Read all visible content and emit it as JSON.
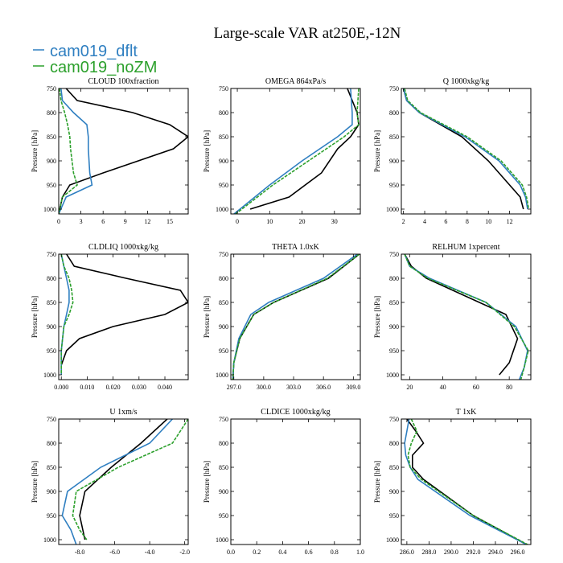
{
  "figure": {
    "title": "Large-scale VAR at250E,-12N",
    "legend": [
      {
        "name": "cam019_dflt",
        "color": "#2f7fc1"
      },
      {
        "name": "cam019_noZM",
        "color": "#2ca02c"
      }
    ],
    "obs_color": "#000000"
  },
  "chart_data": [
    {
      "type": "line",
      "title": "CLOUD 100xfraction",
      "ylabel": "Pressure [hPa]",
      "xlim": [
        0,
        17.5
      ],
      "ylim": [
        1010,
        750
      ],
      "xticks": [
        0,
        3,
        6,
        9,
        12,
        15
      ],
      "xtick_labels": [
        "0",
        "3",
        "6",
        "9",
        "12",
        "15"
      ],
      "yticks": [
        750,
        800,
        850,
        900,
        950,
        1000
      ],
      "series": [
        {
          "color": "#000000",
          "dashed": false,
          "x": [
            1.0,
            2.5,
            10.0,
            15.0,
            17.5,
            15.5,
            6.0,
            1.5,
            0.5,
            0.0
          ],
          "y": [
            750,
            775,
            800,
            825,
            850,
            875,
            925,
            950,
            975,
            1010
          ]
        },
        {
          "color": "#2f7fc1",
          "dashed": false,
          "x": [
            0.3,
            0.5,
            2.0,
            3.8,
            4.0,
            4.0,
            4.2,
            4.5,
            1.0,
            0.0
          ],
          "y": [
            750,
            775,
            800,
            825,
            850,
            875,
            925,
            950,
            975,
            1010
          ]
        },
        {
          "color": "#2ca02c",
          "dashed": true,
          "x": [
            0.1,
            0.3,
            0.8,
            1.2,
            1.5,
            1.6,
            2.0,
            2.5,
            0.5,
            0.0
          ],
          "y": [
            750,
            775,
            800,
            825,
            850,
            875,
            925,
            950,
            975,
            1010
          ]
        }
      ]
    },
    {
      "type": "line",
      "title": "OMEGA 864xPa/s",
      "ylabel": "Pressure [hPa]",
      "xlim": [
        -2,
        38
      ],
      "ylim": [
        1010,
        750
      ],
      "xticks": [
        0,
        10,
        20,
        30
      ],
      "xtick_labels": [
        "0",
        "10",
        "20",
        "30"
      ],
      "yticks": [
        750,
        800,
        850,
        900,
        950,
        1000
      ],
      "series": [
        {
          "color": "#000000",
          "dashed": false,
          "x": [
            34.0,
            37.0,
            37.5,
            35.0,
            31.0,
            26.0,
            16.0,
            4.0
          ],
          "y": [
            750,
            800,
            825,
            850,
            875,
            925,
            975,
            1000
          ]
        },
        {
          "color": "#2f7fc1",
          "dashed": false,
          "x": [
            35.0,
            35.5,
            35.5,
            31.0,
            20.0,
            10.0,
            -1.0
          ],
          "y": [
            750,
            800,
            825,
            850,
            900,
            950,
            1010
          ]
        },
        {
          "color": "#2ca02c",
          "dashed": true,
          "x": [
            37.5,
            37.0,
            37.5,
            33.0,
            22.0,
            11.0,
            -0.5
          ],
          "y": [
            750,
            800,
            825,
            850,
            900,
            950,
            1010
          ]
        }
      ]
    },
    {
      "type": "line",
      "title": "Q 1000xkg/kg",
      "ylabel": "Pressure [hPa]",
      "xlim": [
        1.8,
        14.0
      ],
      "ylim": [
        1010,
        750
      ],
      "xticks": [
        2,
        4,
        6,
        8,
        10,
        12
      ],
      "xtick_labels": [
        "2",
        "4",
        "6",
        "8",
        "10",
        "12"
      ],
      "yticks": [
        750,
        800,
        850,
        900,
        950,
        1000
      ],
      "series": [
        {
          "color": "#000000",
          "dashed": false,
          "x": [
            2.0,
            2.3,
            3.5,
            7.5,
            10.0,
            12.0,
            13.0,
            13.3
          ],
          "y": [
            750,
            775,
            800,
            850,
            900,
            950,
            975,
            1000
          ]
        },
        {
          "color": "#2f7fc1",
          "dashed": false,
          "x": [
            2.0,
            2.3,
            3.5,
            7.8,
            11.0,
            13.0,
            13.5,
            13.7
          ],
          "y": [
            750,
            775,
            800,
            850,
            900,
            950,
            975,
            1000
          ]
        },
        {
          "color": "#2ca02c",
          "dashed": true,
          "x": [
            2.1,
            2.4,
            3.6,
            8.0,
            11.2,
            13.2,
            13.6,
            13.8
          ],
          "y": [
            750,
            775,
            800,
            850,
            900,
            950,
            975,
            1000
          ]
        }
      ]
    },
    {
      "type": "line",
      "title": "CLDLIQ 1000xkg/kg",
      "ylabel": "Pressure [hPa]",
      "xlim": [
        -0.001,
        0.049
      ],
      "ylim": [
        1010,
        750
      ],
      "xticks": [
        0,
        0.01,
        0.02,
        0.03,
        0.04
      ],
      "xtick_labels": [
        "0.000",
        "0.010",
        "0.020",
        "0.030",
        "0.040"
      ],
      "yticks": [
        750,
        800,
        850,
        900,
        950,
        1000
      ],
      "series": [
        {
          "color": "#000000",
          "dashed": false,
          "x": [
            0.002,
            0.005,
            0.025,
            0.046,
            0.049,
            0.04,
            0.02,
            0.007,
            0.002,
            0.0
          ],
          "y": [
            750,
            775,
            800,
            825,
            850,
            875,
            900,
            925,
            950,
            980
          ]
        },
        {
          "color": "#2f7fc1",
          "dashed": false,
          "x": [
            0.0,
            0.001,
            0.002,
            0.003,
            0.003,
            0.002,
            0.001,
            0.0,
            0.0
          ],
          "y": [
            750,
            775,
            800,
            825,
            850,
            875,
            900,
            950,
            1000
          ]
        },
        {
          "color": "#2ca02c",
          "dashed": true,
          "x": [
            0.0,
            0.001,
            0.003,
            0.004,
            0.0045,
            0.003,
            0.001,
            0.0,
            0.0
          ],
          "y": [
            750,
            775,
            800,
            825,
            850,
            875,
            900,
            950,
            1000
          ]
        }
      ]
    },
    {
      "type": "line",
      "title": "THETA 1.0xK",
      "ylabel": "Pressure [hPa]",
      "xlim": [
        296.7,
        309.7
      ],
      "ylim": [
        1010,
        750
      ],
      "xticks": [
        297,
        300,
        303,
        306,
        309
      ],
      "xtick_labels": [
        "297.0",
        "300.0",
        "303.0",
        "306.0",
        "309.0"
      ],
      "yticks": [
        750,
        800,
        850,
        900,
        950,
        1000
      ],
      "series": [
        {
          "color": "#000000",
          "dashed": false,
          "x": [
            309.6,
            306.5,
            301.0,
            299.0,
            297.6,
            297.0,
            296.9
          ],
          "y": [
            750,
            800,
            850,
            875,
            925,
            975,
            1010
          ]
        },
        {
          "color": "#2f7fc1",
          "dashed": false,
          "x": [
            309.4,
            306.0,
            300.5,
            298.7,
            297.5,
            297.0,
            296.9
          ],
          "y": [
            750,
            800,
            850,
            875,
            925,
            975,
            1010
          ]
        },
        {
          "color": "#2ca02c",
          "dashed": true,
          "x": [
            309.6,
            306.4,
            301.0,
            299.0,
            297.6,
            297.0,
            296.9
          ],
          "y": [
            750,
            800,
            850,
            875,
            925,
            975,
            1010
          ]
        }
      ]
    },
    {
      "type": "line",
      "title": "RELHUM 1xpercent",
      "ylabel": "Pressure [hPa]",
      "xlim": [
        15,
        93
      ],
      "ylim": [
        1010,
        750
      ],
      "xticks": [
        20,
        40,
        60,
        80
      ],
      "xtick_labels": [
        "20",
        "40",
        "60",
        "80"
      ],
      "yticks": [
        750,
        800,
        850,
        900,
        950,
        1000
      ],
      "series": [
        {
          "color": "#000000",
          "dashed": false,
          "x": [
            17.0,
            21.0,
            30.0,
            62.0,
            78.0,
            85.0,
            80.0,
            74.0
          ],
          "y": [
            750,
            775,
            800,
            850,
            875,
            925,
            975,
            1000
          ]
        },
        {
          "color": "#2f7fc1",
          "dashed": false,
          "x": [
            17.0,
            20.0,
            32.0,
            66.0,
            84.0,
            91.0,
            89.0,
            86.0
          ],
          "y": [
            750,
            775,
            800,
            850,
            900,
            950,
            985,
            1010
          ]
        },
        {
          "color": "#2ca02c",
          "dashed": true,
          "x": [
            17.0,
            20.0,
            31.0,
            66.0,
            83.0,
            91.5,
            89.0,
            87.0
          ],
          "y": [
            750,
            775,
            800,
            850,
            900,
            950,
            985,
            1010
          ]
        }
      ]
    },
    {
      "type": "line",
      "title": "U 1xm/s",
      "ylabel": "Pressure [hPa]",
      "xlim": [
        -9.2,
        -1.8
      ],
      "ylim": [
        1010,
        750
      ],
      "xticks": [
        -8,
        -6,
        -4,
        -2
      ],
      "xtick_labels": [
        "-8.0",
        "-6.0",
        "-4.0",
        "-2.0"
      ],
      "yticks": [
        750,
        800,
        850,
        900,
        950,
        1000
      ],
      "series": [
        {
          "color": "#000000",
          "dashed": false,
          "x": [
            -3.0,
            -4.5,
            -6.2,
            -7.7,
            -8.0,
            -7.7
          ],
          "y": [
            750,
            800,
            850,
            900,
            950,
            1000
          ]
        },
        {
          "color": "#2f7fc1",
          "dashed": false,
          "x": [
            -2.7,
            -4.0,
            -6.8,
            -8.7,
            -9.0,
            -8.5,
            -8.2
          ],
          "y": [
            750,
            800,
            850,
            900,
            950,
            980,
            1010
          ]
        },
        {
          "color": "#2ca02c",
          "dashed": true,
          "x": [
            -1.8,
            -2.7,
            -5.8,
            -8.2,
            -8.4,
            -8.0,
            -7.6
          ],
          "y": [
            750,
            800,
            850,
            900,
            950,
            980,
            1000
          ]
        }
      ]
    },
    {
      "type": "line",
      "title": "CLDICE 1000xkg/kg",
      "ylabel": "Pressure [hPa]",
      "xlim": [
        0,
        1
      ],
      "ylim": [
        1010,
        750
      ],
      "xticks": [
        0,
        0.2,
        0.4,
        0.6,
        0.8,
        1.0
      ],
      "xtick_labels": [
        "0.0",
        "0.2",
        "0.4",
        "0.6",
        "0.8",
        "1.0"
      ],
      "yticks": [
        750,
        800,
        850,
        900,
        950,
        1000
      ],
      "series": []
    },
    {
      "type": "line",
      "title": "T 1xK",
      "ylabel": "Pressure [hPa]",
      "xlim": [
        285.5,
        297.2
      ],
      "ylim": [
        1010,
        750
      ],
      "xticks": [
        286,
        288,
        290,
        292,
        294,
        296
      ],
      "xtick_labels": [
        "286.0",
        "288.0",
        "290.0",
        "292.0",
        "294.0",
        "296.0"
      ],
      "yticks": [
        750,
        800,
        850,
        900,
        950,
        1000
      ],
      "series": [
        {
          "color": "#000000",
          "dashed": false,
          "x": [
            286.0,
            286.8,
            287.5,
            286.5,
            286.5,
            287.5,
            292.0,
            296.8
          ],
          "y": [
            750,
            775,
            800,
            825,
            850,
            875,
            950,
            1010
          ]
        },
        {
          "color": "#2f7fc1",
          "dashed": false,
          "x": [
            286.2,
            286.0,
            285.8,
            285.9,
            286.3,
            287.0,
            291.7,
            296.8
          ],
          "y": [
            750,
            775,
            800,
            825,
            850,
            875,
            950,
            1010
          ]
        },
        {
          "color": "#2ca02c",
          "dashed": true,
          "x": [
            286.4,
            286.9,
            286.4,
            286.1,
            286.3,
            287.3,
            292.0,
            296.9
          ],
          "y": [
            750,
            775,
            800,
            825,
            850,
            875,
            950,
            1010
          ]
        }
      ]
    }
  ]
}
